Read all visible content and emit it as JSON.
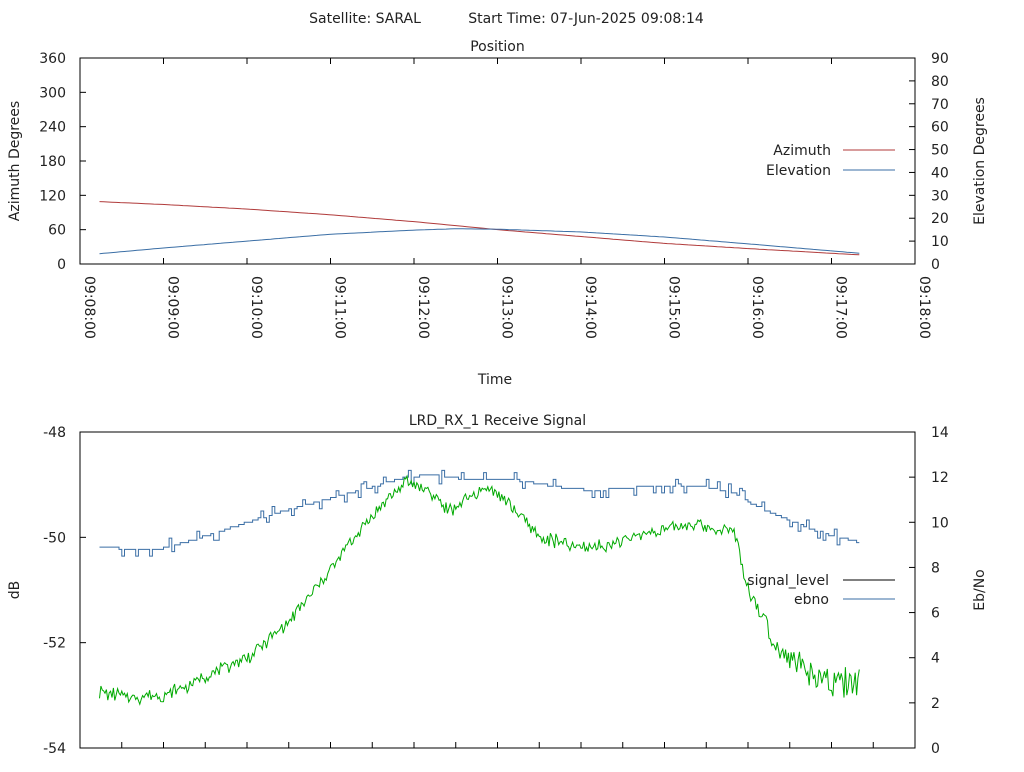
{
  "header": {
    "satellite": "Satellite: SARAL",
    "start_time": "Start Time: 07-Jun-2025 09:08:14"
  },
  "colors": {
    "azimuth": "#b03a3a",
    "elevation": "#3a6ea5",
    "signal_level": "#00aa00",
    "ebno": "#3a6ea5",
    "legend_signal_level_swatch": "#000000"
  },
  "chart_data": [
    {
      "type": "line",
      "title": "Position",
      "xlabel": "Time",
      "ylabel": "Azimuth Degrees",
      "y2label": "Elevation Degrees",
      "xlim": [
        "09:08:00",
        "09:18:00"
      ],
      "ylim": [
        0,
        360
      ],
      "y2lim": [
        0,
        90
      ],
      "x_ticks": [
        "09:08:00",
        "09:09:00",
        "09:10:00",
        "09:11:00",
        "09:12:00",
        "09:13:00",
        "09:14:00",
        "09:15:00",
        "09:16:00",
        "09:17:00",
        "09:18:00"
      ],
      "y_ticks": [
        "0",
        "60",
        "120",
        "180",
        "240",
        "300",
        "360"
      ],
      "y2_ticks": [
        "0",
        "10",
        "20",
        "30",
        "40",
        "50",
        "60",
        "70",
        "80",
        "90"
      ],
      "legend": "right",
      "grid": false,
      "series": [
        {
          "name": "Azimuth",
          "axis": "y1",
          "x": [
            "09:08:14",
            "09:09:00",
            "09:10:00",
            "09:11:00",
            "09:12:00",
            "09:12:30",
            "09:13:00",
            "09:14:00",
            "09:15:00",
            "09:16:00",
            "09:17:20"
          ],
          "values": [
            109,
            104,
            96,
            86,
            74,
            67,
            60,
            48,
            36,
            27,
            16
          ]
        },
        {
          "name": "Elevation",
          "axis": "y2",
          "x": [
            "09:08:14",
            "09:09:00",
            "09:10:00",
            "09:11:00",
            "09:12:00",
            "09:12:30",
            "09:13:00",
            "09:14:00",
            "09:15:00",
            "09:16:00",
            "09:17:20"
          ],
          "values": [
            4.5,
            7,
            10,
            13,
            14.8,
            15.4,
            15.2,
            14,
            11.8,
            8.8,
            4.7
          ]
        }
      ]
    },
    {
      "type": "line",
      "title": "LRD_RX_1 Receive Signal",
      "xlabel": "",
      "ylabel": "dB",
      "y2label": "Eb/No",
      "xlim": [
        "09:08:00",
        "09:18:00"
      ],
      "ylim": [
        -54,
        -48
      ],
      "y2lim": [
        0,
        14
      ],
      "y_ticks": [
        "-48",
        "-50",
        "-52",
        "-54"
      ],
      "y2_ticks": [
        "0",
        "2",
        "4",
        "6",
        "8",
        "10",
        "12",
        "14"
      ],
      "legend": "right",
      "grid": false,
      "series": [
        {
          "name": "signal_level",
          "axis": "y1",
          "x": [
            "09:08:14",
            "09:08:40",
            "09:09:00",
            "09:09:20",
            "09:09:40",
            "09:10:00",
            "09:10:20",
            "09:10:40",
            "09:11:00",
            "09:11:20",
            "09:11:40",
            "09:11:55",
            "09:12:10",
            "09:12:25",
            "09:12:40",
            "09:12:55",
            "09:13:10",
            "09:13:30",
            "09:14:00",
            "09:14:20",
            "09:14:40",
            "09:15:00",
            "09:15:20",
            "09:15:40",
            "09:15:50",
            "09:16:00",
            "09:16:20",
            "09:16:40",
            "09:17:00",
            "09:17:20"
          ],
          "values": [
            -52.95,
            -53.05,
            -53.0,
            -52.8,
            -52.5,
            -52.3,
            -51.85,
            -51.3,
            -50.6,
            -49.9,
            -49.3,
            -48.95,
            -49.1,
            -49.5,
            -49.25,
            -49.05,
            -49.4,
            -50.0,
            -50.2,
            -50.15,
            -49.95,
            -49.85,
            -49.75,
            -49.85,
            -49.85,
            -51.0,
            -52.0,
            -52.5,
            -52.85,
            -52.75
          ]
        },
        {
          "name": "ebno",
          "axis": "y2",
          "x": [
            "09:08:14",
            "09:08:40",
            "09:09:00",
            "09:09:20",
            "09:09:40",
            "09:10:00",
            "09:10:20",
            "09:10:40",
            "09:11:00",
            "09:11:20",
            "09:11:40",
            "09:11:55",
            "09:12:10",
            "09:12:30",
            "09:12:50",
            "09:13:10",
            "09:13:30",
            "09:13:50",
            "09:14:10",
            "09:14:30",
            "09:14:50",
            "09:15:10",
            "09:15:30",
            "09:15:50",
            "09:16:00",
            "09:16:20",
            "09:16:40",
            "09:17:00",
            "09:17:20"
          ],
          "values": [
            8.9,
            8.8,
            8.85,
            9.2,
            9.6,
            10.0,
            10.4,
            10.75,
            11.05,
            11.4,
            11.75,
            12.0,
            12.1,
            11.95,
            11.85,
            11.9,
            11.7,
            11.5,
            11.4,
            11.5,
            11.6,
            11.65,
            11.55,
            11.3,
            10.9,
            10.3,
            9.8,
            9.4,
            9.1
          ]
        }
      ]
    }
  ]
}
